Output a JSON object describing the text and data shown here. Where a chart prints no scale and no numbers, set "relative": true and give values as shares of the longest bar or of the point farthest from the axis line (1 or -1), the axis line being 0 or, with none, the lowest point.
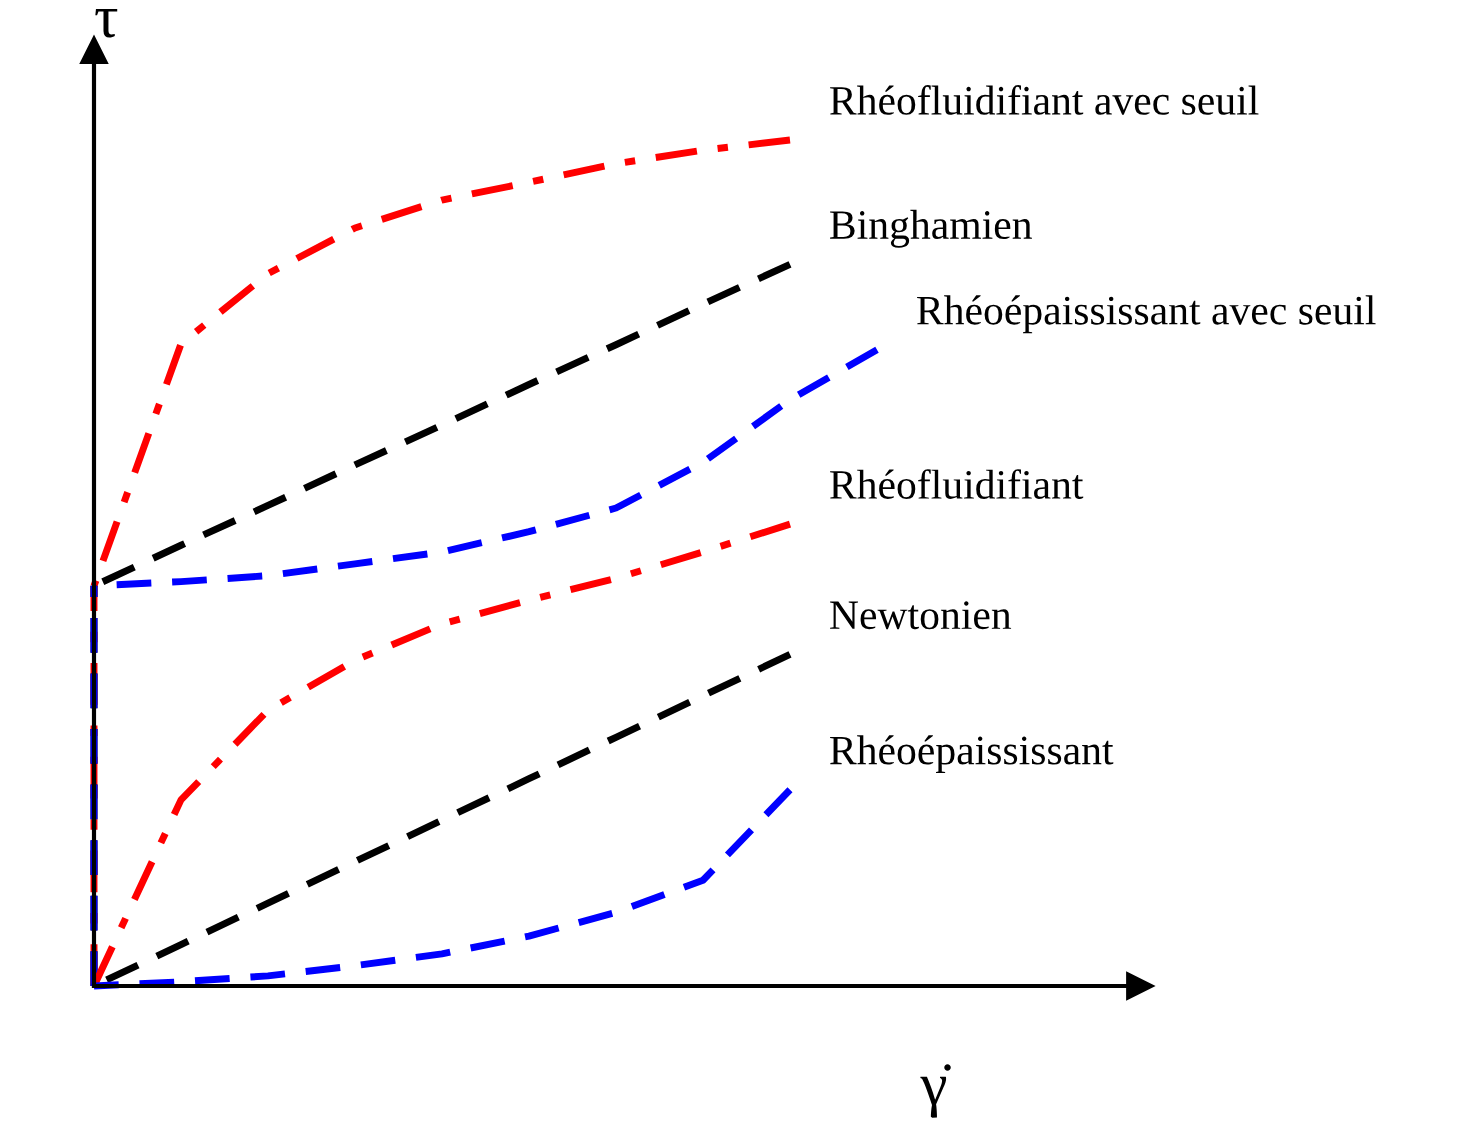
{
  "chart_data": {
    "type": "line",
    "relative": true,
    "xlabel": "γ̇",
    "ylabel": "τ",
    "legend": false,
    "marker": "none",
    "categories": [
      null,
      null,
      null,
      null,
      null,
      null,
      null,
      null,
      null,
      null
    ],
    "series": [
      {
        "name": "Rhéofluidifiant avec seuil",
        "color": "#ff0000",
        "line_style": "dashdot",
        "values": [
          0.473,
          0.759,
          0.842,
          0.896,
          0.929,
          0.95,
          0.972,
          0.988,
          1.0,
          null
        ]
      },
      {
        "name": "Binghamien",
        "color": "#000000",
        "line_style": "dashed",
        "values": [
          0.473,
          0.521,
          0.568,
          0.616,
          0.663,
          0.711,
          0.758,
          0.806,
          0.853,
          null
        ]
      },
      {
        "name": "Rhéoépaississant avec seuil",
        "color": "#0000ff",
        "line_style": "dashed",
        "values": [
          0.473,
          0.478,
          0.485,
          0.499,
          0.513,
          0.537,
          0.565,
          0.619,
          0.693,
          0.752
        ]
      },
      {
        "name": "Rhéofluidifiant",
        "color": "#ff0000",
        "line_style": "dashdot",
        "values": [
          0,
          0.22,
          0.326,
          0.385,
          0.428,
          0.456,
          0.482,
          0.513,
          0.546,
          null
        ]
      },
      {
        "name": "Newtonien",
        "color": "#000000",
        "line_style": "dashed",
        "values": [
          0,
          0.049,
          0.098,
          0.147,
          0.196,
          0.245,
          0.294,
          0.343,
          0.392,
          null
        ]
      },
      {
        "name": "Rhéoépaississant",
        "color": "#0000ff",
        "line_style": "dashed",
        "values": [
          0,
          0.005,
          0.012,
          0.024,
          0.038,
          0.059,
          0.087,
          0.125,
          0.232,
          null
        ]
      }
    ]
  }
}
